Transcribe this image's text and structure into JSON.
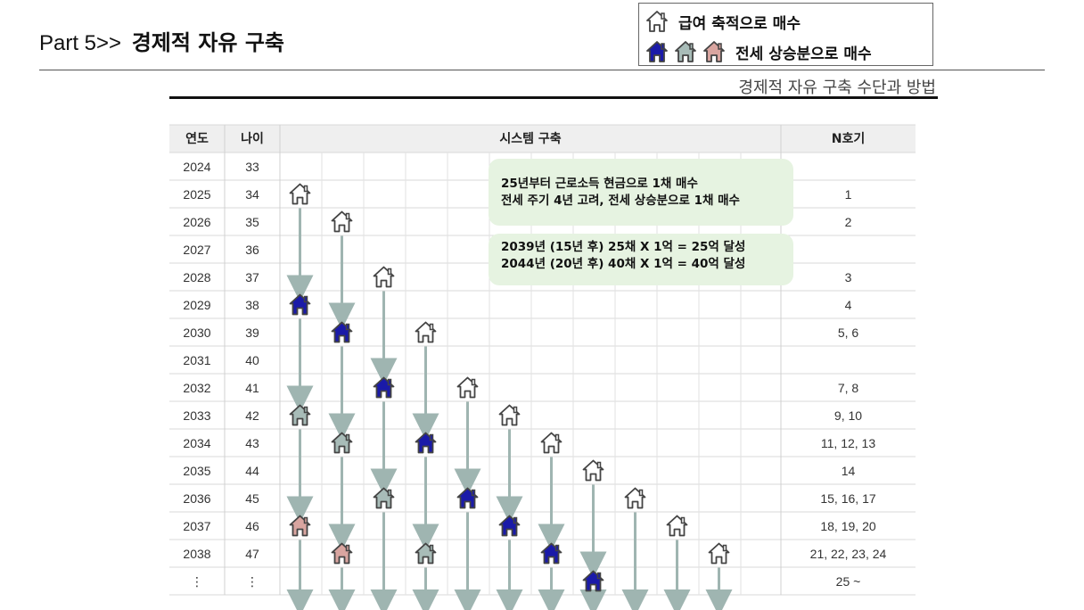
{
  "header": {
    "part": "Part 5>>",
    "title": "경제적 자유 구축"
  },
  "legend": {
    "row1": {
      "icons": [
        "house-outline-icon"
      ],
      "label": "급여 축적으로 매수"
    },
    "row2": {
      "icons": [
        "house-blue-icon",
        "house-gray-icon",
        "house-pink-icon"
      ],
      "label": "전세 상승분으로 매수"
    }
  },
  "subtitle": "경제적 자유 구축 수단과 방법",
  "colors": {
    "outline": "#444444",
    "blue": "#1a1aa8",
    "gray": "#a8bcb8",
    "pink": "#d9a5a0",
    "arrow": "#9fb5b1",
    "note": "#e6f3e1"
  },
  "table": {
    "headers": [
      "연도",
      "나이",
      "시스템 구축",
      "N호기"
    ],
    "rows": [
      {
        "year": "2024",
        "age": "33",
        "n": ""
      },
      {
        "year": "2025",
        "age": "34",
        "n": "1"
      },
      {
        "year": "2026",
        "age": "35",
        "n": "2"
      },
      {
        "year": "2027",
        "age": "36",
        "n": ""
      },
      {
        "year": "2028",
        "age": "37",
        "n": "3"
      },
      {
        "year": "2029",
        "age": "38",
        "n": "4"
      },
      {
        "year": "2030",
        "age": "39",
        "n": "5, 6"
      },
      {
        "year": "2031",
        "age": "40",
        "n": ""
      },
      {
        "year": "2032",
        "age": "41",
        "n": "7, 8"
      },
      {
        "year": "2033",
        "age": "42",
        "n": "9, 10"
      },
      {
        "year": "2034",
        "age": "43",
        "n": "11, 12, 13"
      },
      {
        "year": "2035",
        "age": "44",
        "n": "14"
      },
      {
        "year": "2036",
        "age": "45",
        "n": "15, 16, 17"
      },
      {
        "year": "2037",
        "age": "46",
        "n": "18, 19, 20"
      },
      {
        "year": "2038",
        "age": "47",
        "n": "21, 22, 23, 24"
      },
      {
        "year": "⋮",
        "age": "⋮",
        "n": "25 ~"
      }
    ],
    "houses": [
      {
        "col": 0,
        "row": 1,
        "type": "outline"
      },
      {
        "col": 1,
        "row": 2,
        "type": "outline"
      },
      {
        "col": 2,
        "row": 4,
        "type": "outline"
      },
      {
        "col": 0,
        "row": 5,
        "type": "blue"
      },
      {
        "col": 1,
        "row": 6,
        "type": "blue"
      },
      {
        "col": 3,
        "row": 6,
        "type": "outline"
      },
      {
        "col": 2,
        "row": 8,
        "type": "blue"
      },
      {
        "col": 4,
        "row": 8,
        "type": "outline"
      },
      {
        "col": 0,
        "row": 9,
        "type": "gray"
      },
      {
        "col": 5,
        "row": 9,
        "type": "outline"
      },
      {
        "col": 1,
        "row": 10,
        "type": "gray"
      },
      {
        "col": 3,
        "row": 10,
        "type": "blue"
      },
      {
        "col": 6,
        "row": 10,
        "type": "outline"
      },
      {
        "col": 7,
        "row": 11,
        "type": "outline"
      },
      {
        "col": 2,
        "row": 12,
        "type": "gray"
      },
      {
        "col": 4,
        "row": 12,
        "type": "blue"
      },
      {
        "col": 8,
        "row": 12,
        "type": "outline"
      },
      {
        "col": 0,
        "row": 13,
        "type": "pink"
      },
      {
        "col": 5,
        "row": 13,
        "type": "blue"
      },
      {
        "col": 9,
        "row": 13,
        "type": "outline"
      },
      {
        "col": 1,
        "row": 14,
        "type": "pink"
      },
      {
        "col": 3,
        "row": 14,
        "type": "gray"
      },
      {
        "col": 6,
        "row": 14,
        "type": "blue"
      },
      {
        "col": 10,
        "row": 14,
        "type": "outline"
      },
      {
        "col": 7,
        "row": 15,
        "type": "blue"
      }
    ]
  },
  "notes": {
    "note1": {
      "line1": "25년부터 근로소득 현금으로 1채 매수",
      "line2": "전세 주기 4년 고려, 전세 상승분으로 1채 매수"
    },
    "note2": {
      "line1": "2039년 (15년 후) 25채 X 1억 = 25억 달성",
      "line2": "2044년 (20년 후) 40채 X 1억 = 40억 달성"
    }
  }
}
